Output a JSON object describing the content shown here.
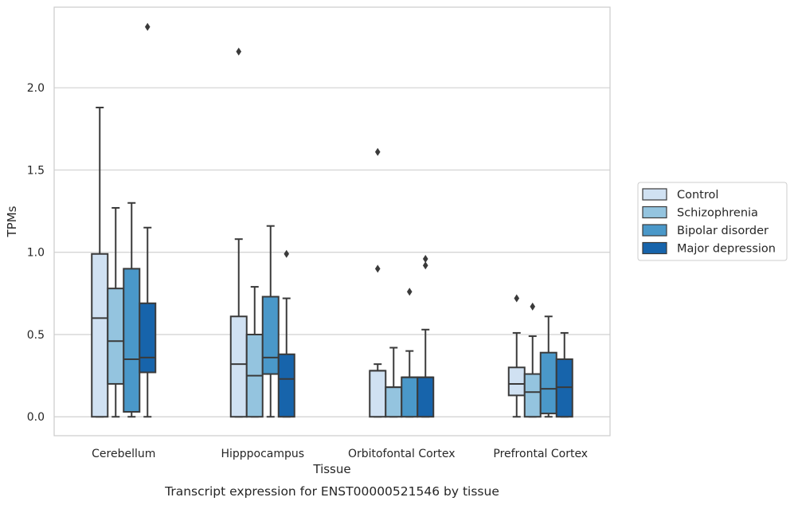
{
  "chart_data": {
    "type": "box",
    "xlabel": "Tissue",
    "ylabel": "TPMs",
    "caption": "Transcript expression for ENST00000521546 by tissue",
    "ylim": [
      -0.115,
      2.49
    ],
    "yticks": [
      0.0,
      0.5,
      1.0,
      1.5,
      2.0
    ],
    "ytick_labels": [
      "0.0",
      "0.5",
      "1.0",
      "1.5",
      "2.0"
    ],
    "grid": "horizontal",
    "legend_position": "right",
    "categories": [
      "Cerebellum",
      "Hipppocampus",
      "Orbitofontal Cortex",
      "Prefrontal Cortex"
    ],
    "series": [
      {
        "name": "Control",
        "color": "#d0e1f2",
        "boxes": [
          {
            "whislo": 0.0,
            "q1": 0.0,
            "med": 0.6,
            "q3": 0.99,
            "whishi": 1.88,
            "fliers": []
          },
          {
            "whislo": 0.0,
            "q1": 0.0,
            "med": 0.32,
            "q3": 0.61,
            "whishi": 1.08,
            "fliers": [
              2.22
            ]
          },
          {
            "whislo": 0.0,
            "q1": 0.0,
            "med": 0.28,
            "q3": 0.28,
            "whishi": 0.32,
            "fliers": [
              0.9,
              1.61
            ]
          },
          {
            "whislo": 0.0,
            "q1": 0.13,
            "med": 0.2,
            "q3": 0.3,
            "whishi": 0.51,
            "fliers": [
              0.72
            ]
          }
        ]
      },
      {
        "name": "Schizophrenia",
        "color": "#94c4df",
        "boxes": [
          {
            "whislo": 0.0,
            "q1": 0.2,
            "med": 0.46,
            "q3": 0.78,
            "whishi": 1.27,
            "fliers": []
          },
          {
            "whislo": 0.0,
            "q1": 0.0,
            "med": 0.25,
            "q3": 0.5,
            "whishi": 0.79,
            "fliers": []
          },
          {
            "whislo": 0.0,
            "q1": 0.0,
            "med": 0.18,
            "q3": 0.18,
            "whishi": 0.42,
            "fliers": []
          },
          {
            "whislo": 0.0,
            "q1": 0.0,
            "med": 0.15,
            "q3": 0.26,
            "whishi": 0.49,
            "fliers": [
              0.67
            ]
          }
        ]
      },
      {
        "name": "Bipolar disorder",
        "color": "#4a98c9",
        "boxes": [
          {
            "whislo": 0.0,
            "q1": 0.03,
            "med": 0.35,
            "q3": 0.9,
            "whishi": 1.3,
            "fliers": []
          },
          {
            "whislo": 0.0,
            "q1": 0.26,
            "med": 0.36,
            "q3": 0.73,
            "whishi": 1.16,
            "fliers": []
          },
          {
            "whislo": 0.0,
            "q1": 0.0,
            "med": 0.24,
            "q3": 0.24,
            "whishi": 0.4,
            "fliers": [
              0.76
            ]
          },
          {
            "whislo": 0.0,
            "q1": 0.02,
            "med": 0.17,
            "q3": 0.39,
            "whishi": 0.61,
            "fliers": []
          }
        ]
      },
      {
        "name": "Major depression",
        "color": "#1764ab",
        "boxes": [
          {
            "whislo": 0.0,
            "q1": 0.27,
            "med": 0.36,
            "q3": 0.69,
            "whishi": 1.15,
            "fliers": [
              2.37
            ]
          },
          {
            "whislo": 0.0,
            "q1": 0.0,
            "med": 0.23,
            "q3": 0.38,
            "whishi": 0.72,
            "fliers": [
              0.99
            ]
          },
          {
            "whislo": 0.0,
            "q1": 0.0,
            "med": 0.24,
            "q3": 0.24,
            "whishi": 0.53,
            "fliers": [
              0.92,
              0.96
            ]
          },
          {
            "whislo": 0.0,
            "q1": 0.0,
            "med": 0.18,
            "q3": 0.35,
            "whishi": 0.51,
            "fliers": []
          }
        ]
      }
    ]
  }
}
